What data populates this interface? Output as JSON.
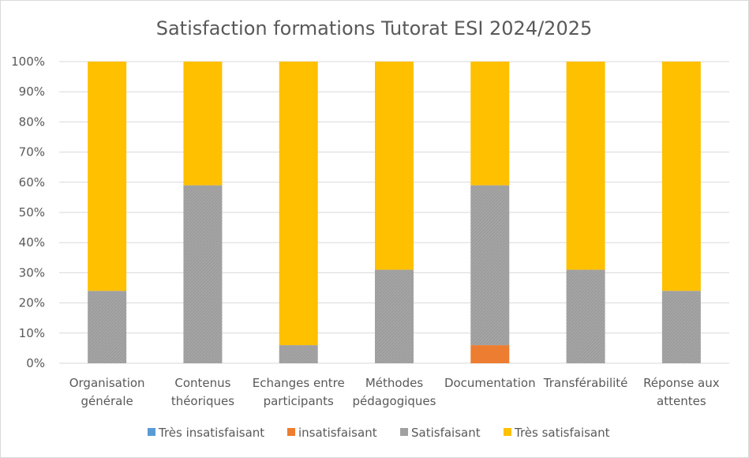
{
  "chart_data": {
    "type": "bar",
    "stacked": true,
    "percent_scale": true,
    "title": "Satisfaction formations Tutorat ESI 2024/2025",
    "categories": [
      [
        "Organisation",
        "générale"
      ],
      [
        "Contenus",
        "théoriques"
      ],
      [
        "Echanges entre",
        "participants"
      ],
      [
        "Méthodes",
        "pédagogiques"
      ],
      [
        "Documentation"
      ],
      [
        "Transférabilité"
      ],
      [
        "Réponse aux",
        "attentes"
      ]
    ],
    "y_ticks": [
      "0%",
      "10%",
      "20%",
      "30%",
      "40%",
      "50%",
      "60%",
      "70%",
      "80%",
      "90%",
      "100%"
    ],
    "ylim": [
      0,
      100
    ],
    "grid": true,
    "legend_position": "bottom",
    "series": [
      {
        "name": "Très insatisfaisant",
        "color": "#5b9bd5",
        "values": [
          0,
          0,
          0,
          0,
          0,
          0,
          0
        ]
      },
      {
        "name": "insatisfaisant",
        "color": "#ed7d31",
        "values": [
          0,
          0,
          0,
          0,
          6,
          0,
          0
        ]
      },
      {
        "name": "Satisfaisant",
        "color": "#a5a5a5",
        "values": [
          24,
          59,
          6,
          31,
          53,
          31,
          24
        ]
      },
      {
        "name": "Très satisfaisant",
        "color": "#ffc000",
        "values": [
          76,
          41,
          94,
          69,
          41,
          69,
          76
        ]
      }
    ]
  }
}
